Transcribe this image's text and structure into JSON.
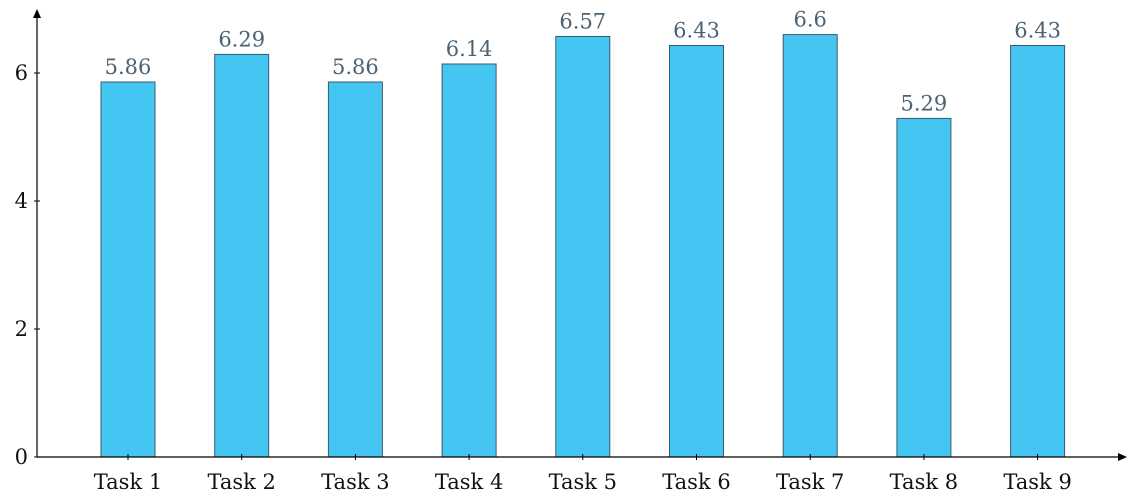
{
  "chart_data": {
    "type": "bar",
    "title": "",
    "xlabel": "",
    "ylabel": "",
    "categories": [
      "Task 1",
      "Task 2",
      "Task 3",
      "Task 4",
      "Task 5",
      "Task 6",
      "Task 7",
      "Task 8",
      "Task 9"
    ],
    "values": [
      5.86,
      6.29,
      5.86,
      6.14,
      6.57,
      6.43,
      6.6,
      5.29,
      6.43
    ],
    "value_labels": [
      "5.86",
      "6.29",
      "5.86",
      "6.14",
      "6.57",
      "6.43",
      "6.6",
      "5.29",
      "6.43"
    ],
    "ylim": [
      0,
      7
    ],
    "yticks": [
      0,
      2,
      4,
      6
    ],
    "ytick_labels": [
      "0",
      "2",
      "4",
      "6"
    ],
    "grid": false,
    "legend": "none",
    "colors": {
      "bar_fill": "#45c6f2",
      "bar_stroke": "#3a5a6e",
      "value_label": "#4a6272",
      "axis": "#000000"
    }
  }
}
